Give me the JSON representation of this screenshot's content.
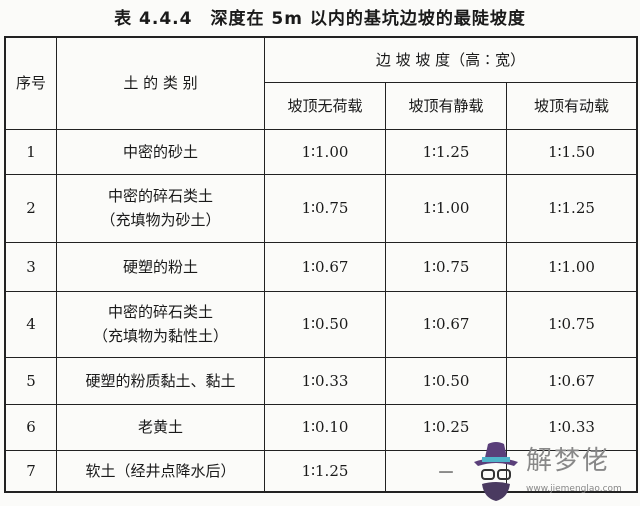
{
  "title": "表 4.4.4　深度在 5m 以内的基坑边坡的最陡坡度",
  "headers": {
    "index": "序号",
    "soil_type": "土 的 类 别",
    "slope_group": "边 坡 坡 度（高∶宽）",
    "cols": [
      "坡顶无荷载",
      "坡顶有静载",
      "坡顶有动载"
    ]
  },
  "rows": [
    {
      "no": "1",
      "soil": [
        "中密的砂土"
      ],
      "v": [
        "1∶1.00",
        "1∶1.25",
        "1∶1.50"
      ]
    },
    {
      "no": "2",
      "soil": [
        "中密的碎石类土",
        "（充填物为砂土）"
      ],
      "v": [
        "1∶0.75",
        "1∶1.00",
        "1∶1.25"
      ]
    },
    {
      "no": "3",
      "soil": [
        "硬塑的粉土"
      ],
      "v": [
        "1∶0.67",
        "1∶0.75",
        "1∶1.00"
      ]
    },
    {
      "no": "4",
      "soil": [
        "中密的碎石类土",
        "（充填物为黏性土）"
      ],
      "v": [
        "1∶0.50",
        "1∶0.67",
        "1∶0.75"
      ]
    },
    {
      "no": "5",
      "soil": [
        "硬塑的粉质黏土、黏土"
      ],
      "v": [
        "1∶0.33",
        "1∶0.50",
        "1∶0.67"
      ]
    },
    {
      "no": "6",
      "soil": [
        "老黄土"
      ],
      "v": [
        "1∶0.10",
        "1∶0.25",
        "1∶0.33"
      ]
    },
    {
      "no": "7",
      "soil": [
        "软土（经井点降水后）"
      ],
      "v": [
        "1∶1.25",
        "—",
        ""
      ]
    }
  ],
  "watermark": {
    "brand": "解梦佬",
    "url": "www.jiemenglao.com"
  }
}
